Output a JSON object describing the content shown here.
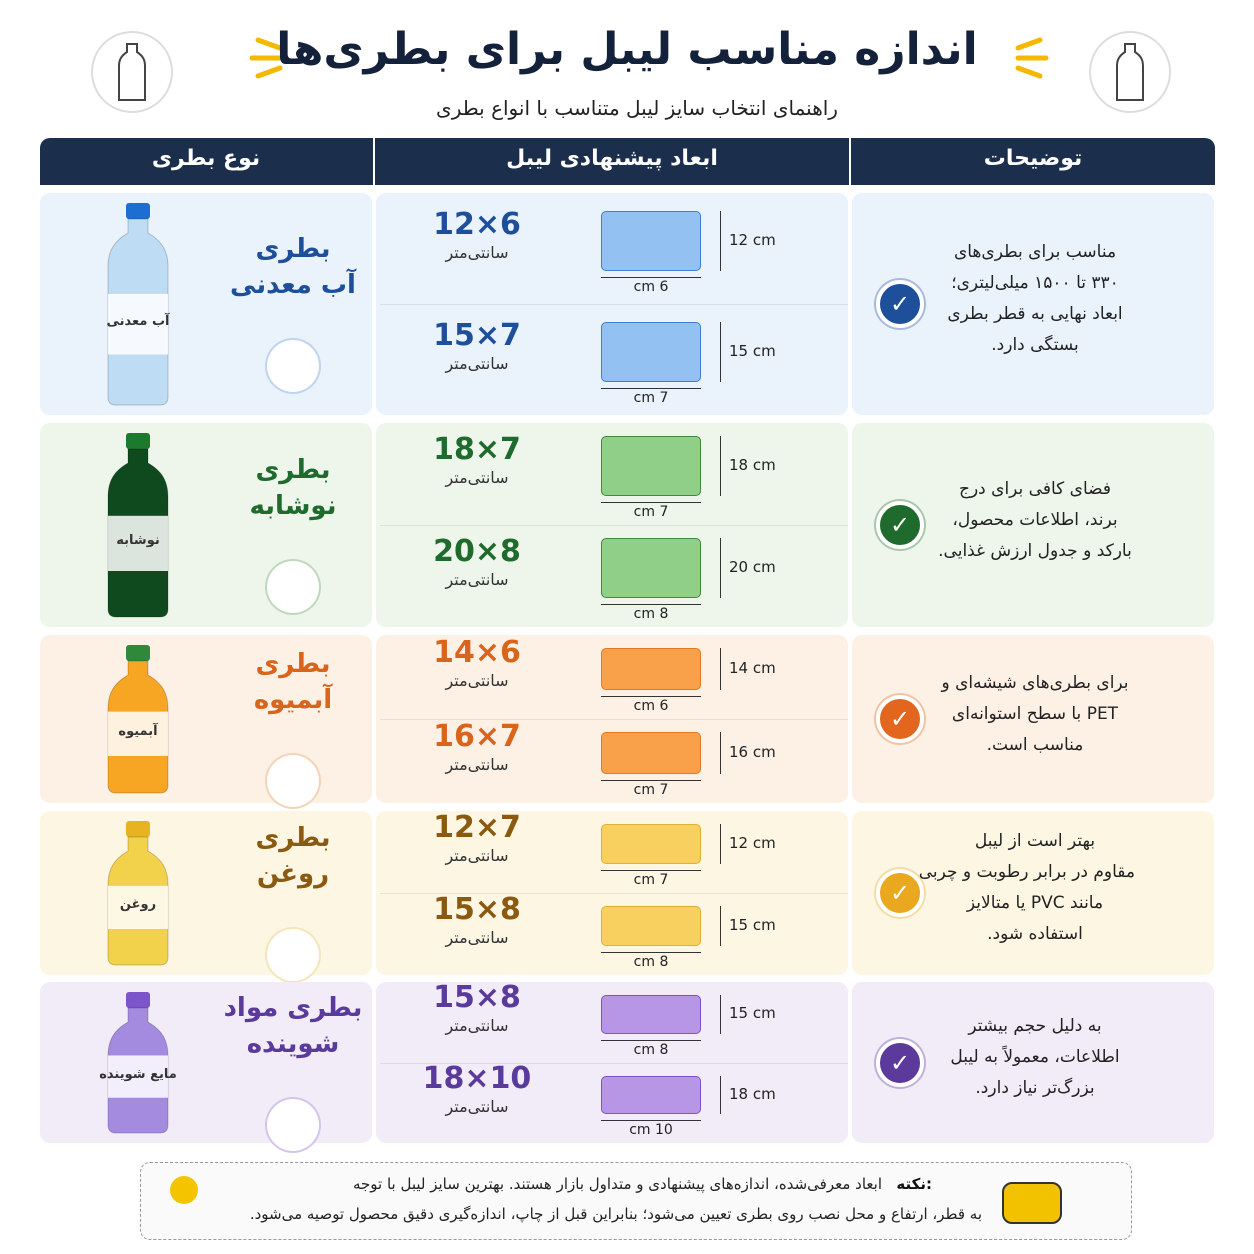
{
  "header": {
    "title": "اندازه مناسب لیبل برای بطری‌ها",
    "subtitle": "راهنمای انتخاب سایز لیبل متناسب با انواع بطری"
  },
  "table": {
    "columns": [
      "نوع بطری",
      "ابعاد پیشنهادی لیبل",
      "توضیحات"
    ],
    "rows": [
      {
        "name_lines": [
          "بطری",
          "آب معدنی"
        ],
        "bottle_label": "آب معدنی",
        "sizes": [
          {
            "size": "6×12",
            "unit": "سانتی‌متر",
            "width": "6 cm",
            "height": "12 cm"
          },
          {
            "size": "7×15",
            "unit": "سانتی‌متر",
            "width": "7 cm",
            "height": "15 cm"
          }
        ],
        "description": [
          "مناسب برای بطری‌های",
          "۳۳۰ تا ۱۵۰۰ میلی‌لیتری؛",
          "ابعاد نهایی به قطر بطری",
          "بستگی دارد."
        ]
      },
      {
        "name_lines": [
          "بطری",
          "نوشابه"
        ],
        "bottle_label": "نوشابه",
        "sizes": [
          {
            "size": "7×18",
            "unit": "سانتی‌متر",
            "width": "7 cm",
            "height": "18 cm"
          },
          {
            "size": "8×20",
            "unit": "سانتی‌متر",
            "width": "8 cm",
            "height": "20 cm"
          }
        ],
        "description": [
          "فضای کافی برای درج",
          "برند، اطلاعات محصول،",
          "بارکد و جدول ارزش غذایی."
        ]
      },
      {
        "name_lines": [
          "بطری",
          "آبمیوه"
        ],
        "bottle_label": "آبمیوه",
        "sizes": [
          {
            "size": "6×14",
            "unit": "سانتی‌متر",
            "width": "6 cm",
            "height": "14 cm"
          },
          {
            "size": "7×16",
            "unit": "سانتی‌متر",
            "width": "7 cm",
            "height": "16 cm"
          }
        ],
        "description": [
          "برای بطری‌های شیشه‌ای و",
          "PET با سطح استوانه‌ای",
          "مناسب است."
        ]
      },
      {
        "name_lines": [
          "بطری",
          "روغن"
        ],
        "bottle_label": "روغن",
        "sizes": [
          {
            "size": "7×12",
            "unit": "سانتی‌متر",
            "width": "7 cm",
            "height": "12 cm"
          },
          {
            "size": "8×15",
            "unit": "سانتی‌متر",
            "width": "8 cm",
            "height": "15 cm"
          }
        ],
        "description": [
          "بهتر است از لیبل",
          "مقاوم در برابر رطوبت و چربی",
          "مانند PVC یا متالایز",
          "استفاده شود."
        ]
      },
      {
        "name_lines": [
          "بطری مواد",
          "شوینده"
        ],
        "bottle_label": "مایع شوینده",
        "sizes": [
          {
            "size": "8×15",
            "unit": "سانتی‌متر",
            "width": "8 cm",
            "height": "15 cm"
          },
          {
            "size": "10×18",
            "unit": "سانتی‌متر",
            "width": "10 cm",
            "height": "18 cm"
          }
        ],
        "description": [
          "به دلیل حجم بیشتر",
          "اطلاعات، معمولاً به لیبل",
          "بزرگ‌تر نیاز دارد."
        ]
      }
    ]
  },
  "note": {
    "label": "نکته:",
    "lines": [
      "ابعاد معرفی‌شده، اندازه‌های پیشنهادی و متداول بازار هستند. بهترین سایز لیبل با توجه",
      "به قطر، ارتفاع و محل نصب روی بطری تعیین می‌شود؛ بنابراین قبل از چاپ، اندازه‌گیری دقیق محصول توصیه می‌شود."
    ]
  }
}
